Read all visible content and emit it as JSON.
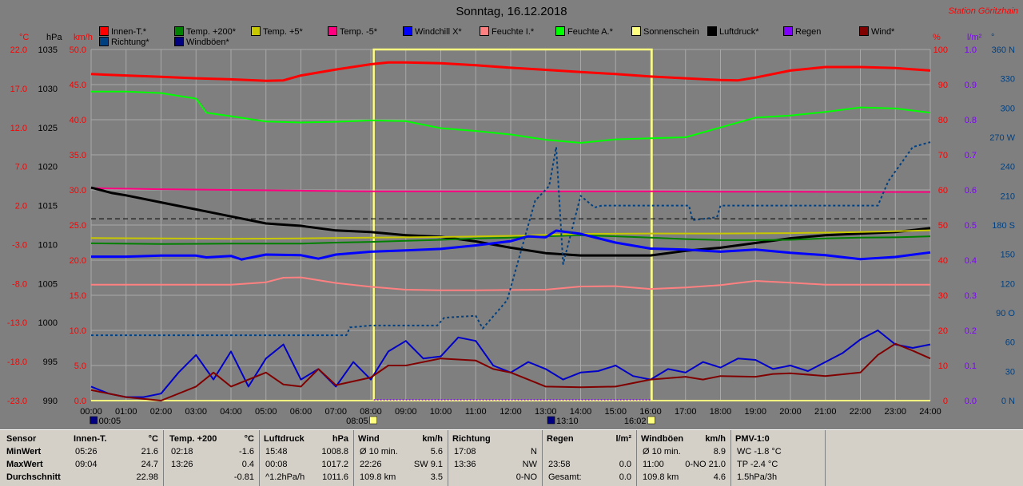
{
  "header": {
    "title": "Sonntag, 16.12.2018",
    "station": "Station Göritzhain"
  },
  "axis_headers": {
    "degc": "°C",
    "hpa": "hPa",
    "kmh": "km/h",
    "pct": "%",
    "lm2": "l/m²",
    "deg": "°"
  },
  "legend": [
    {
      "label": "Innen-T.*",
      "color": "#ff0000"
    },
    {
      "label": "Temp. +200*",
      "color": "#008000"
    },
    {
      "label": "Temp. +5*",
      "color": "#c8c800"
    },
    {
      "label": "Temp. -5*",
      "color": "#ff0080"
    },
    {
      "label": "Windchill X*",
      "color": "#0000ff"
    },
    {
      "label": "Feuchte I.*",
      "color": "#ff8080"
    },
    {
      "label": "Feuchte A.*",
      "color": "#00ff00"
    },
    {
      "label": "Sonnenschein",
      "color": "#ffff80"
    },
    {
      "label": "Luftdruck*",
      "color": "#000000"
    },
    {
      "label": "Regen",
      "color": "#8000ff"
    },
    {
      "label": "Wind*",
      "color": "#800000"
    },
    {
      "label": "Richtung*",
      "color": "#004080"
    },
    {
      "label": "Windböen*",
      "color": "#000080"
    }
  ],
  "chart_data": {
    "type": "line",
    "x_ticks": [
      "00:00",
      "01:00",
      "02:00",
      "03:00",
      "04:00",
      "05:00",
      "06:00",
      "07:00",
      "08:00",
      "09:00",
      "10:00",
      "11:00",
      "12:00",
      "13:00",
      "14:00",
      "15:00",
      "16:00",
      "17:00",
      "18:00",
      "19:00",
      "20:00",
      "21:00",
      "22:00",
      "23:00",
      "24:00"
    ],
    "x_range": [
      0,
      24
    ],
    "axes": {
      "degc": {
        "ticks": [
          "22.0",
          "17.0",
          "12.0",
          "7.0",
          "2.0",
          "-3.0",
          "-8.0",
          "-13.0",
          "-18.0",
          "-23.0"
        ],
        "range": [
          -23,
          22
        ]
      },
      "hpa": {
        "ticks": [
          "1035",
          "1030",
          "1025",
          "1020",
          "1015",
          "1010",
          "1005",
          "1000",
          "995",
          "990"
        ],
        "range": [
          990,
          1035
        ]
      },
      "kmh": {
        "ticks": [
          "50.0",
          "45.0",
          "40.0",
          "35.0",
          "30.0",
          "25.0",
          "20.0",
          "15.0",
          "10.0",
          "5.0",
          "0.0"
        ],
        "range": [
          0,
          50
        ]
      },
      "pct": {
        "ticks": [
          "100",
          "90",
          "80",
          "70",
          "60",
          "50",
          "40",
          "30",
          "20",
          "10",
          "0"
        ],
        "range": [
          0,
          100
        ]
      },
      "lm2": {
        "ticks": [
          "1.0",
          "0.9",
          "0.8",
          "0.7",
          "0.6",
          "0.5",
          "0.4",
          "0.3",
          "0.2",
          "0.1",
          "0.0"
        ],
        "range": [
          0,
          1
        ]
      },
      "deg": {
        "ticks": [
          "360 N",
          "330",
          "300",
          "270 W",
          "240",
          "210",
          "180 S",
          "150",
          "120",
          "90 O",
          "60",
          "30",
          "0 N"
        ],
        "range": [
          0,
          360
        ]
      }
    },
    "series": [
      {
        "name": "Innen-T.*",
        "axis": "pct",
        "color": "#ff0000",
        "width": 3,
        "x": [
          0,
          1,
          2,
          3,
          4,
          5,
          5.5,
          6,
          7,
          8,
          8.5,
          9,
          10,
          11,
          12,
          13,
          14,
          15,
          16,
          17,
          18,
          18.5,
          19,
          20,
          21,
          22,
          23,
          24
        ],
        "y": [
          93,
          92.6,
          92.2,
          91.8,
          91.5,
          91.1,
          91.2,
          92.6,
          94.3,
          95.8,
          96.3,
          96.3,
          96.1,
          95.5,
          94.8,
          94.2,
          93.6,
          93,
          92.3,
          91.8,
          91.3,
          91.2,
          92,
          94,
          95,
          95,
          94.7,
          94
        ]
      },
      {
        "name": "Feuchte A.*",
        "axis": "pct",
        "color": "#00ff00",
        "width": 2,
        "x": [
          0,
          1,
          2,
          3,
          3.3,
          4,
          5,
          6,
          7,
          8,
          9,
          10,
          11,
          12,
          13,
          14,
          15,
          16,
          17,
          18,
          19,
          20,
          21,
          22,
          23,
          24
        ],
        "y": [
          88,
          88,
          87.6,
          86,
          82,
          81,
          79.5,
          79.2,
          79.4,
          79.8,
          79.6,
          77.6,
          76.8,
          75.8,
          74.3,
          73.4,
          74.4,
          74.7,
          75,
          77.8,
          80.6,
          81.2,
          82.2,
          83.5,
          83.2,
          82
        ]
      },
      {
        "name": "Temp. -5*",
        "axis": "pct",
        "color": "#ff0080",
        "width": 2,
        "x": [
          0,
          2,
          4,
          6,
          8,
          10,
          12,
          14,
          16,
          18,
          20,
          22,
          24
        ],
        "y": [
          60.5,
          60.2,
          60,
          59.8,
          59.6,
          59.6,
          59.6,
          59.6,
          59.6,
          59.5,
          59.5,
          59.4,
          59.4
        ]
      },
      {
        "name": "Feuchte I.*",
        "axis": "pct",
        "color": "#ff8080",
        "width": 2,
        "x": [
          0,
          2,
          4,
          5,
          5.5,
          6,
          7,
          8,
          9,
          10,
          11,
          12,
          13,
          14,
          15,
          16,
          17,
          18,
          19,
          20,
          21,
          22,
          23,
          24
        ],
        "y": [
          33,
          33,
          33,
          33.7,
          35,
          35.1,
          33.5,
          32.4,
          31.6,
          31.4,
          31.4,
          31.5,
          31.6,
          32.5,
          32.6,
          31.8,
          32.2,
          32.9,
          34.1,
          33.6,
          33,
          33,
          33,
          33
        ]
      },
      {
        "name": "Luftdruck*",
        "axis": "hpa",
        "color": "#000000",
        "width": 3,
        "x": [
          0,
          0.6,
          1,
          2,
          3,
          4,
          5,
          6,
          7,
          8,
          9,
          10,
          11,
          12,
          13,
          14,
          15,
          16,
          17,
          18,
          19,
          20,
          21,
          22,
          23,
          24
        ],
        "y": [
          1017.3,
          1016.6,
          1016.3,
          1015.4,
          1014.5,
          1013.6,
          1012.7,
          1012.4,
          1011.8,
          1011.6,
          1011.2,
          1011.0,
          1010.4,
          1009.6,
          1008.9,
          1008.6,
          1008.6,
          1008.6,
          1009.2,
          1009.6,
          1010.2,
          1010.8,
          1011.2,
          1011.4,
          1011.6,
          1012.1
        ]
      },
      {
        "name": "Temp. +200*",
        "axis": "pct",
        "color": "#008000",
        "width": 2,
        "x": [
          0,
          2,
          4,
          6,
          7,
          8,
          9,
          10,
          11,
          12,
          13,
          14,
          15,
          16,
          17,
          18,
          19,
          20,
          21,
          22,
          23,
          24
        ],
        "y": [
          44.8,
          44.6,
          44.7,
          44.7,
          45,
          45.2,
          45.5,
          45.8,
          46.2,
          46.4,
          46.8,
          47.1,
          46.8,
          46.4,
          46,
          45.7,
          45.7,
          45.8,
          46.2,
          46.4,
          46.5,
          46.8
        ]
      },
      {
        "name": "Temp. +5*",
        "axis": "pct",
        "color": "#c8c800",
        "width": 2,
        "x": [
          0,
          2,
          4,
          6,
          8,
          10,
          12,
          14,
          16,
          18,
          20,
          22,
          24
        ],
        "y": [
          46.3,
          46.2,
          46.1,
          46.2,
          46.4,
          46.6,
          46.9,
          47.5,
          47.6,
          47.6,
          47.7,
          48,
          48.5
        ]
      },
      {
        "name": "Windchill X*",
        "axis": "pct",
        "color": "#0000ff",
        "width": 3,
        "x": [
          0,
          1,
          2,
          3,
          3.3,
          4,
          4.3,
          5,
          6,
          6.5,
          7,
          8,
          9,
          10,
          11,
          12,
          12.5,
          13,
          13.3,
          14,
          15,
          16,
          17,
          18,
          19,
          20,
          21,
          22,
          23,
          24
        ],
        "y": [
          41,
          41,
          41.3,
          41.3,
          40.8,
          41.2,
          40.2,
          41.6,
          41.4,
          40.4,
          41.6,
          42.4,
          42.8,
          43.2,
          44.2,
          45.4,
          46.8,
          46.5,
          48.4,
          47.5,
          45,
          43.3,
          43,
          42.4,
          43,
          42.1,
          41.4,
          40.3,
          40.9,
          42.2
        ]
      },
      {
        "name": "Richtung*",
        "axis": "deg",
        "color": "#004080",
        "width": 2,
        "dashed": true,
        "x": [
          0,
          7.3,
          7.4,
          8,
          9.9,
          10.1,
          11,
          11.2,
          11.9,
          12.7,
          13.1,
          13.3,
          13.5,
          14,
          14.4,
          14.6,
          17.1,
          17.2,
          17.9,
          18,
          22.4,
          22.5,
          22.8,
          23.2,
          23.5,
          24
        ],
        "y": [
          67,
          67,
          75,
          77,
          77,
          85,
          87,
          74,
          103,
          205,
          220,
          260,
          140,
          210,
          198,
          200,
          200,
          185,
          188,
          200,
          200,
          200,
          225,
          245,
          260,
          265
        ]
      },
      {
        "name": "Windböen*",
        "axis": "kmh",
        "color": "#0000c8",
        "width": 2,
        "x": [
          0,
          0.5,
          1,
          1.5,
          2,
          2.5,
          3,
          3.5,
          4,
          4.5,
          5,
          5.5,
          6,
          6.5,
          7,
          7.5,
          8,
          8.5,
          9,
          9.5,
          10,
          10.5,
          11,
          11.5,
          12,
          12.5,
          13,
          13.5,
          14,
          14.5,
          15,
          15.5,
          16,
          16.5,
          17,
          17.5,
          18,
          18.5,
          19,
          19.5,
          20,
          20.5,
          21,
          21.5,
          22,
          22.5,
          23,
          23.5,
          24
        ],
        "y": [
          2,
          1,
          0.5,
          0.5,
          1,
          4,
          6.5,
          3,
          7,
          2,
          6,
          8,
          3,
          4.5,
          2,
          5.5,
          3,
          7,
          8.5,
          6,
          6.3,
          9,
          8.5,
          5,
          4,
          5.5,
          4.5,
          3,
          4,
          4.2,
          5,
          3.5,
          3,
          4.5,
          4,
          5.5,
          4.7,
          6,
          5.8,
          4.5,
          5,
          4.2,
          5.5,
          6.8,
          8.7,
          10,
          8,
          7.5,
          8
        ]
      },
      {
        "name": "Wind*",
        "axis": "kmh",
        "color": "#800000",
        "width": 2,
        "x": [
          0,
          1,
          2,
          3,
          3.5,
          4,
          5,
          5.5,
          6,
          6.5,
          7,
          8,
          8.5,
          9,
          10,
          11,
          11.5,
          12,
          12.5,
          13,
          14,
          15,
          16,
          17,
          17.5,
          18,
          19,
          19.5,
          20,
          21,
          22,
          22.5,
          23,
          23.5,
          24
        ],
        "y": [
          1.5,
          0.5,
          0,
          2,
          4,
          2,
          4,
          2.3,
          2,
          4.5,
          2.2,
          3.3,
          5,
          5,
          6,
          5.7,
          4.5,
          4,
          3,
          2,
          1.9,
          2,
          3,
          3.4,
          3,
          3.5,
          3.4,
          3.8,
          3.9,
          3.5,
          4,
          6.5,
          8.1,
          7.1,
          6
        ]
      }
    ],
    "sunshine": {
      "start": "08:05",
      "end": "16:02",
      "color": "#ffff80"
    },
    "sun_markers": [
      {
        "time": "00:05"
      },
      {
        "time": "08:05"
      },
      {
        "time": "13:10"
      },
      {
        "time": "16:02"
      }
    ],
    "hline_dashed_hpa": 1013.3,
    "grid": true
  },
  "stats": {
    "row_labels": [
      "Sensor",
      "MinWert",
      "MaxWert",
      "Durchschnitt"
    ],
    "blocks": [
      {
        "title": "Innen-T.",
        "unit": "°C",
        "rows": [
          [
            "05:26",
            "21.6"
          ],
          [
            "09:04",
            "24.7"
          ],
          [
            "",
            "22.98"
          ]
        ]
      },
      {
        "title": "Temp. +200",
        "unit": "°C",
        "rows": [
          [
            "02:18",
            "-1.6"
          ],
          [
            "13:26",
            "0.4"
          ],
          [
            "",
            "-0.81"
          ]
        ]
      },
      {
        "title": "Luftdruck",
        "unit": "hPa",
        "rows": [
          [
            "15:48",
            "1008.8"
          ],
          [
            "00:08",
            "1017.2"
          ],
          [
            "^1.2hPa/h",
            "1011.6"
          ]
        ]
      },
      {
        "title": "Wind",
        "unit": "km/h",
        "rows": [
          [
            "Ø 10 min.",
            "5.6"
          ],
          [
            "22:26",
            "SW 9.1"
          ],
          [
            "109.8 km",
            "3.5"
          ]
        ]
      },
      {
        "title": "Richtung",
        "unit": "",
        "rows": [
          [
            "17:08",
            "N"
          ],
          [
            "13:36",
            "NW"
          ],
          [
            "",
            "0-NO"
          ]
        ]
      },
      {
        "title": "Regen",
        "unit": "l/m²",
        "rows": [
          [
            "",
            ""
          ],
          [
            "23:58",
            "0.0"
          ],
          [
            "Gesamt:",
            "0.0"
          ]
        ]
      },
      {
        "title": "Windböen",
        "unit": "km/h",
        "rows": [
          [
            "Ø 10 min.",
            "8.9"
          ],
          [
            "11:00",
            "0-NO 21.0"
          ],
          [
            "109.8 km",
            "4.6"
          ]
        ]
      },
      {
        "title": "PMV-1:0",
        "unit": "",
        "rows": [
          [
            "WC -1.8 °C",
            ""
          ],
          [
            "TP -2.4 °C",
            ""
          ],
          [
            "1.5hPa/3h",
            ""
          ]
        ]
      }
    ]
  }
}
